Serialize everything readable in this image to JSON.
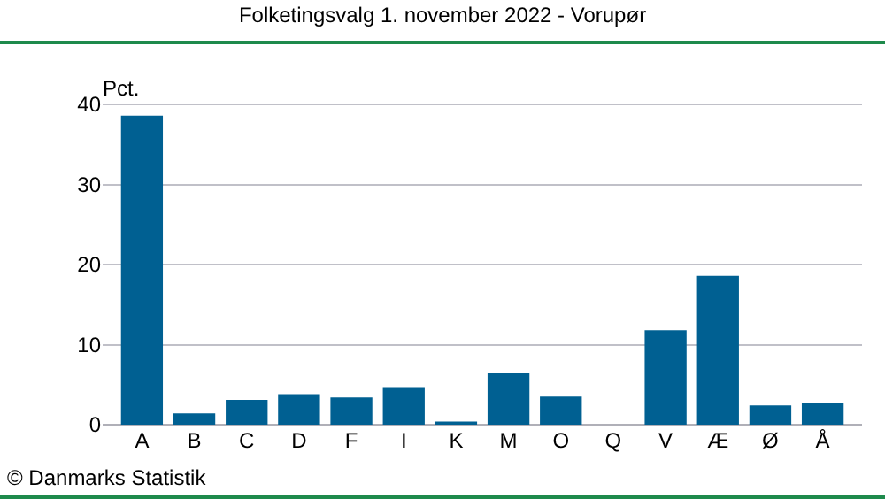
{
  "chart_data": {
    "type": "bar",
    "title": "Folketingsvalg 1. november 2022 - Vorupør",
    "ylabel": "Pct.",
    "categories": [
      "A",
      "B",
      "C",
      "D",
      "F",
      "I",
      "K",
      "M",
      "O",
      "Q",
      "V",
      "Æ",
      "Ø",
      "Å"
    ],
    "values": [
      38.6,
      1.4,
      3.1,
      3.8,
      3.4,
      4.7,
      0.4,
      6.4,
      3.5,
      0,
      11.8,
      18.6,
      2.4,
      2.7
    ],
    "color": "#006092",
    "ylim": [
      0,
      40
    ],
    "yticks": [
      0,
      10,
      20,
      30,
      40
    ],
    "grid": "y",
    "legend": false,
    "annotations": [
      "© Danmarks Statistik"
    ]
  }
}
